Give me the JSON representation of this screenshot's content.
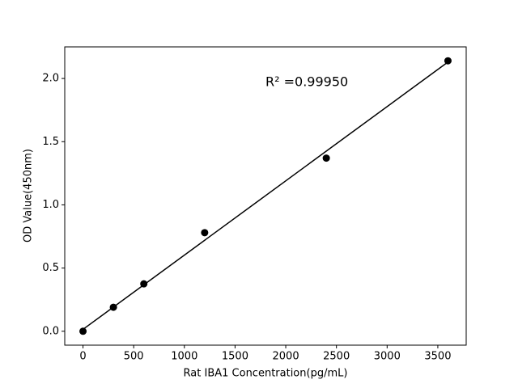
{
  "chart_data": {
    "type": "scatter",
    "xlabel": "Rat IBA1 Concentration(pg/mL)",
    "ylabel": "OD Value(450nm)",
    "annotation": "R² =0.99950",
    "x": [
      0,
      300,
      600,
      1200,
      2400,
      3600
    ],
    "values": [
      0.0,
      0.19,
      0.375,
      0.78,
      1.37,
      2.14
    ],
    "color": "#000000",
    "fit_line": {
      "x": [
        0,
        3600
      ],
      "values": [
        0.015,
        2.13
      ],
      "color": "#000000"
    },
    "xlim": [
      -180,
      3780
    ],
    "ylim": [
      -0.11,
      2.25
    ],
    "xticks": [
      0,
      500,
      1000,
      1500,
      2000,
      2500,
      3000,
      3500
    ],
    "yticks": [
      {
        "value": 0,
        "label": "0.0"
      },
      0.5,
      {
        "value": 1,
        "label": "1.0"
      },
      1.5,
      {
        "value": 2,
        "label": "2.0"
      }
    ]
  }
}
